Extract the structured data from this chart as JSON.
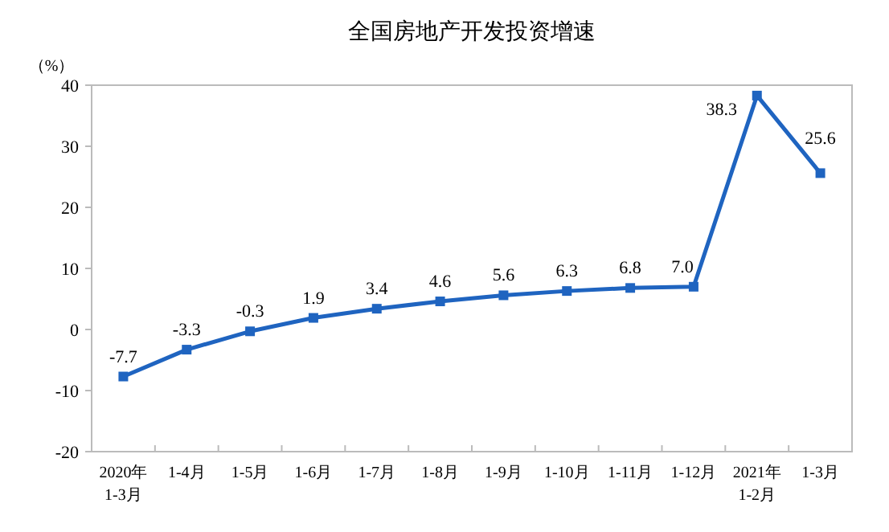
{
  "chart_data": {
    "type": "line",
    "title": "全国房地产开发投资增速",
    "ylabel": "（%）",
    "categories": [
      "2020年\n1-3月",
      "1-4月",
      "1-5月",
      "1-6月",
      "1-7月",
      "1-8月",
      "1-9月",
      "1-10月",
      "1-11月",
      "1-12月",
      "2021年\n1-2月",
      "1-3月"
    ],
    "series": [
      {
        "color": "#1f64c0",
        "values": [
          -7.7,
          -3.3,
          -0.3,
          1.9,
          3.4,
          4.6,
          5.6,
          6.3,
          6.8,
          7.0,
          38.3,
          25.6
        ],
        "value_labels": [
          "-7.7",
          "-3.3",
          "-0.3",
          "1.9",
          "3.4",
          "4.6",
          "5.6",
          "6.3",
          "6.8",
          "7.0",
          "38.3",
          "25.6"
        ]
      }
    ],
    "ylim": [
      -20,
      40
    ],
    "yticks": [
      -20,
      -10,
      0,
      10,
      20,
      30,
      40
    ],
    "grid": false,
    "marker": "square",
    "line_style": "solid"
  }
}
